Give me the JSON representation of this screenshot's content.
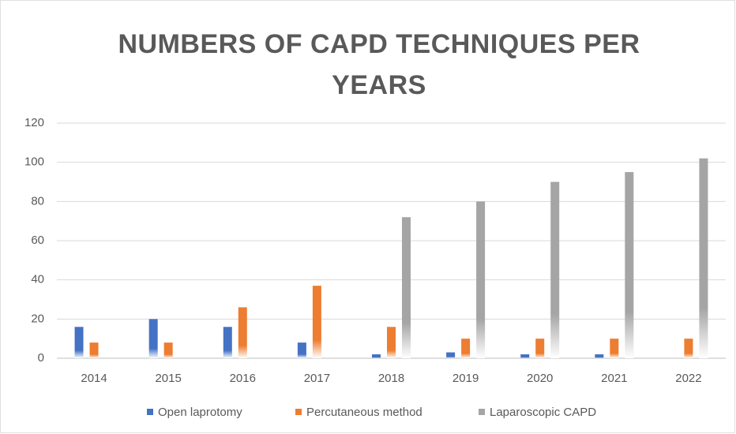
{
  "chart_data": {
    "type": "bar",
    "title": "NUMBERS OF CAPD TECHNIQUES PER YEARS",
    "categories": [
      "2014",
      "2015",
      "2016",
      "2017",
      "2018",
      "2019",
      "2020",
      "2021",
      "2022"
    ],
    "series": [
      {
        "name": "Open laprotomy",
        "color": "#4472c4",
        "values": [
          16,
          20,
          16,
          8,
          2,
          3,
          2,
          2,
          0
        ]
      },
      {
        "name": "Percutaneous method",
        "color": "#ed7d31",
        "values": [
          8,
          8,
          26,
          37,
          16,
          10,
          10,
          10,
          10
        ]
      },
      {
        "name": "Laparoscopic CAPD",
        "color": "#a5a5a5",
        "values": [
          0,
          0,
          0,
          0,
          72,
          80,
          90,
          95,
          102
        ]
      }
    ],
    "ylim": [
      0,
      120
    ],
    "yticks": [
      0,
      20,
      40,
      60,
      80,
      100,
      120
    ],
    "grid": true,
    "legend": "bottom"
  }
}
